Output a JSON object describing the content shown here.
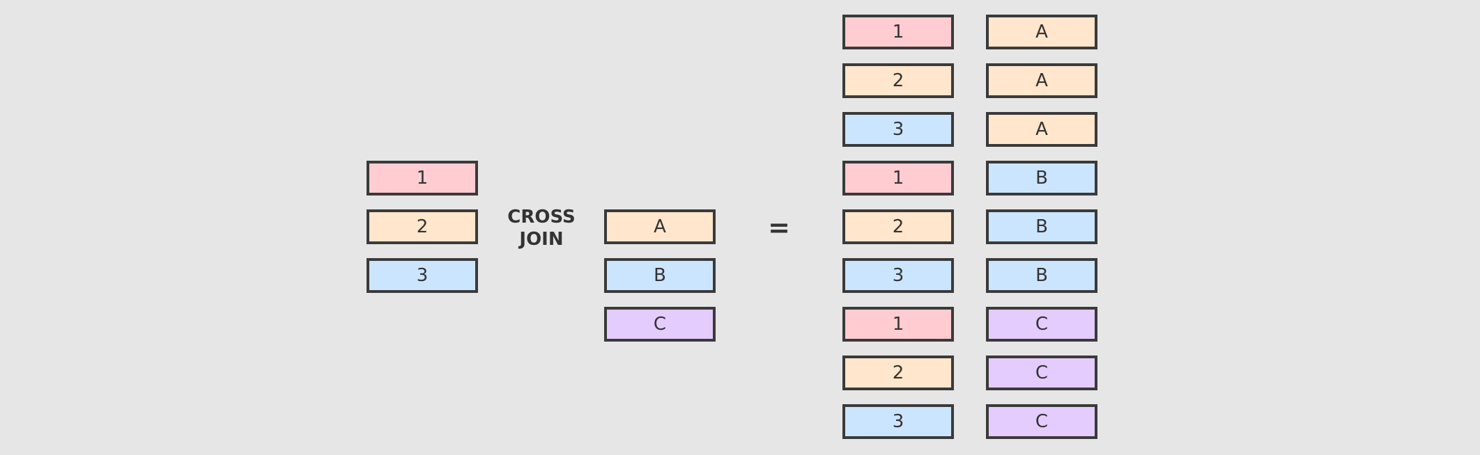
{
  "colors": {
    "background": "#e6e6e6",
    "border": "#3a3a3a",
    "text": "#333333",
    "row1": "#ffccd1",
    "row2": "#ffe6cc",
    "row3": "#cce5ff",
    "rowC": "#e5ccff"
  },
  "left_table": {
    "cells": [
      {
        "label": "1",
        "color": "#ffccd1"
      },
      {
        "label": "2",
        "color": "#ffe6cc"
      },
      {
        "label": "3",
        "color": "#cce5ff"
      }
    ]
  },
  "operator": {
    "line1": "CROSS",
    "line2": "JOIN"
  },
  "right_table": {
    "cells": [
      {
        "label": "A",
        "color": "#ffe6cc"
      },
      {
        "label": "B",
        "color": "#cce5ff"
      },
      {
        "label": "C",
        "color": "#e5ccff"
      }
    ]
  },
  "equals_sign": "=",
  "result": {
    "rows": [
      {
        "num": {
          "label": "1",
          "color": "#ffccd1"
        },
        "letter": {
          "label": "A",
          "color": "#ffe6cc"
        }
      },
      {
        "num": {
          "label": "2",
          "color": "#ffe6cc"
        },
        "letter": {
          "label": "A",
          "color": "#ffe6cc"
        }
      },
      {
        "num": {
          "label": "3",
          "color": "#cce5ff"
        },
        "letter": {
          "label": "A",
          "color": "#ffe6cc"
        }
      },
      {
        "num": {
          "label": "1",
          "color": "#ffccd1"
        },
        "letter": {
          "label": "B",
          "color": "#cce5ff"
        }
      },
      {
        "num": {
          "label": "2",
          "color": "#ffe6cc"
        },
        "letter": {
          "label": "B",
          "color": "#cce5ff"
        }
      },
      {
        "num": {
          "label": "3",
          "color": "#cce5ff"
        },
        "letter": {
          "label": "B",
          "color": "#cce5ff"
        }
      },
      {
        "num": {
          "label": "1",
          "color": "#ffccd1"
        },
        "letter": {
          "label": "C",
          "color": "#e5ccff"
        }
      },
      {
        "num": {
          "label": "2",
          "color": "#ffe6cc"
        },
        "letter": {
          "label": "C",
          "color": "#e5ccff"
        }
      },
      {
        "num": {
          "label": "3",
          "color": "#cce5ff"
        },
        "letter": {
          "label": "C",
          "color": "#e5ccff"
        }
      }
    ]
  }
}
